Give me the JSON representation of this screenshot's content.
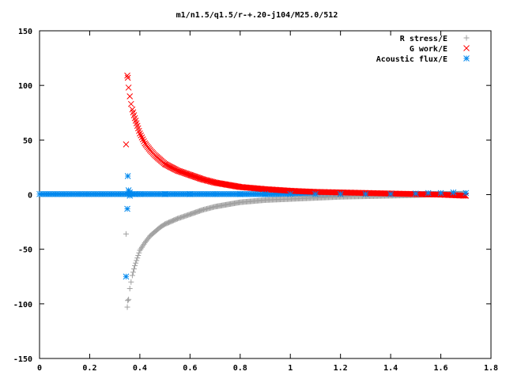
{
  "chart_data": {
    "type": "scatter",
    "title": "m1/n1.5/q1.5/r-+.20-j104/M25.0/512",
    "xlabel": "",
    "ylabel": "",
    "xlim": [
      0,
      1.8
    ],
    "ylim": [
      -150,
      150
    ],
    "x_ticks": [
      "0",
      "0.2",
      "0.4",
      "0.6",
      "0.8",
      "1",
      "1.2",
      "1.4",
      "1.6",
      "1.8"
    ],
    "y_ticks": [
      "150",
      "100",
      "50",
      "0",
      "-50",
      "-100",
      "-150"
    ],
    "grid": false,
    "legend_position": "top-right",
    "series": [
      {
        "name": "R stress/E",
        "marker": "plus",
        "color": "#a0a0a0",
        "points": [
          [
            0.345,
            -36
          ],
          [
            0.35,
            -103
          ],
          [
            0.352,
            -97
          ],
          [
            0.355,
            -96
          ],
          [
            0.36,
            -86
          ],
          [
            0.365,
            -80
          ],
          [
            0.37,
            -74
          ],
          [
            0.38,
            -65
          ],
          [
            0.39,
            -58
          ],
          [
            0.4,
            -51
          ],
          [
            0.42,
            -44
          ],
          [
            0.44,
            -38
          ],
          [
            0.46,
            -34
          ],
          [
            0.48,
            -30
          ],
          [
            0.5,
            -27
          ],
          [
            0.55,
            -22
          ],
          [
            0.6,
            -18
          ],
          [
            0.65,
            -14
          ],
          [
            0.7,
            -11
          ],
          [
            0.75,
            -9
          ],
          [
            0.8,
            -7
          ],
          [
            0.9,
            -5
          ],
          [
            1.0,
            -4
          ],
          [
            1.1,
            -3
          ],
          [
            1.2,
            -2
          ],
          [
            1.3,
            -1.5
          ],
          [
            1.4,
            -1
          ],
          [
            1.5,
            -0.5
          ],
          [
            1.6,
            0.5
          ],
          [
            1.7,
            1
          ]
        ]
      },
      {
        "name": "G work/E",
        "marker": "cross",
        "color": "#ff0000",
        "points": [
          [
            0.345,
            46
          ],
          [
            0.35,
            109
          ],
          [
            0.352,
            107
          ],
          [
            0.355,
            98
          ],
          [
            0.36,
            90
          ],
          [
            0.365,
            83
          ],
          [
            0.37,
            78
          ],
          [
            0.38,
            70
          ],
          [
            0.39,
            63
          ],
          [
            0.4,
            56
          ],
          [
            0.42,
            47
          ],
          [
            0.44,
            41
          ],
          [
            0.46,
            36
          ],
          [
            0.48,
            32
          ],
          [
            0.5,
            28
          ],
          [
            0.55,
            22
          ],
          [
            0.6,
            18
          ],
          [
            0.65,
            14
          ],
          [
            0.7,
            11
          ],
          [
            0.75,
            9
          ],
          [
            0.8,
            7
          ],
          [
            0.9,
            5
          ],
          [
            1.0,
            3.5
          ],
          [
            1.1,
            2.5
          ],
          [
            1.2,
            2
          ],
          [
            1.3,
            1.5
          ],
          [
            1.4,
            1
          ],
          [
            1.5,
            0.5
          ],
          [
            1.6,
            0
          ],
          [
            1.7,
            -1
          ]
        ]
      },
      {
        "name": "Acoustic flux/E",
        "marker": "star",
        "color": "#0088ee",
        "points": [
          [
            0.345,
            -75
          ],
          [
            0.35,
            -13
          ],
          [
            0.352,
            17
          ],
          [
            0.355,
            4
          ],
          [
            0.36,
            2
          ],
          [
            0.36,
            -1
          ],
          [
            0.38,
            0.5
          ],
          [
            0.4,
            0.5
          ],
          [
            0.5,
            0.5
          ],
          [
            0.6,
            0.5
          ],
          [
            0.7,
            0.5
          ],
          [
            0.8,
            0.5
          ],
          [
            0.9,
            0.5
          ],
          [
            1.0,
            0.5
          ],
          [
            1.1,
            0.5
          ],
          [
            1.2,
            0.5
          ],
          [
            1.3,
            0.5
          ],
          [
            1.4,
            0.5
          ],
          [
            1.5,
            1
          ],
          [
            1.55,
            1.5
          ],
          [
            1.6,
            1.5
          ],
          [
            1.65,
            2
          ],
          [
            1.7,
            1.5
          ]
        ]
      }
    ],
    "dense_band": {
      "series": "Acoustic flux/E",
      "x_range": [
        0,
        1.7
      ],
      "y": 0.5
    }
  }
}
